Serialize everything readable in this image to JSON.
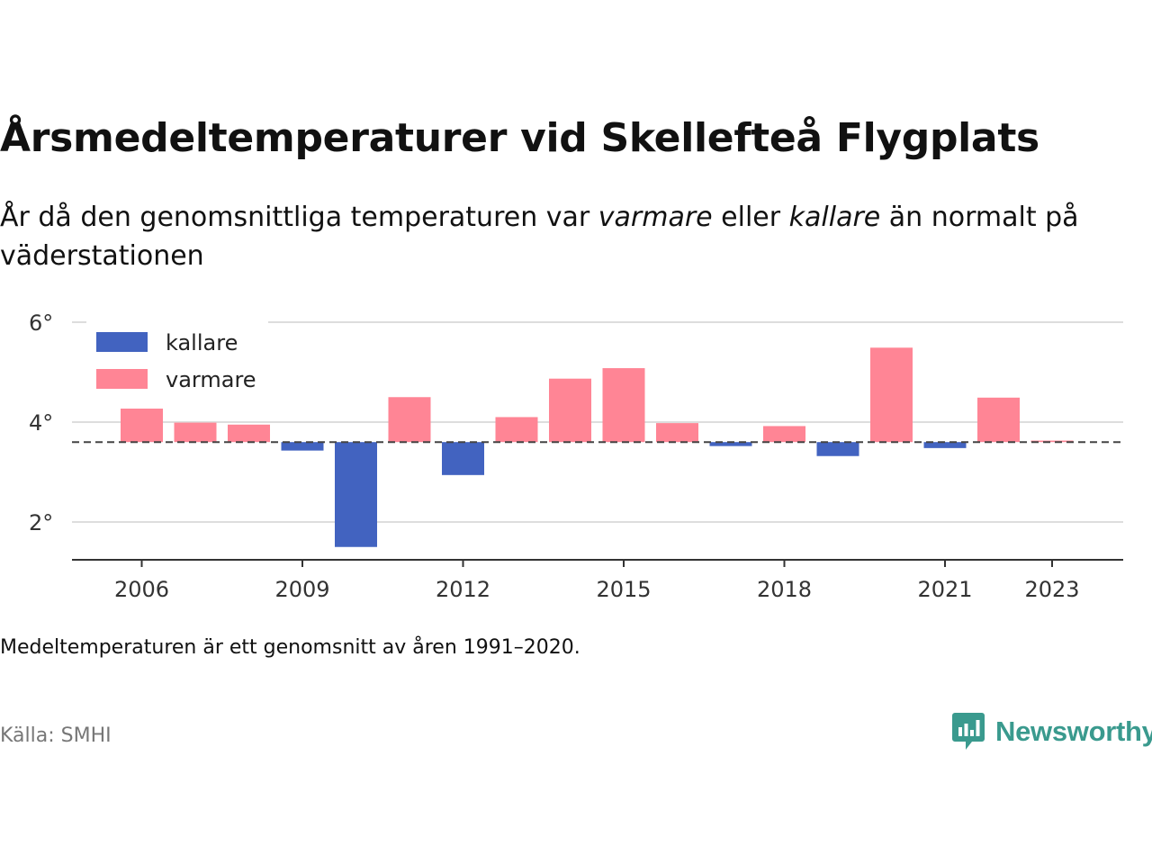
{
  "title": "Årsmedeltemperaturer vid Skellefteå Flygplats",
  "subtitle": {
    "part1": "År då den genomsnittliga temperaturen var ",
    "warm_word": "varmare",
    "part2": " eller ",
    "cold_word": "kallare",
    "part3": " än normalt på väderstationen"
  },
  "note": "Medeltemperaturen är ett genomsnitt av åren 1991–2020.",
  "source": "Källa: SMHI",
  "brand": {
    "name": "Newsworthy",
    "icon": "newsworthy-chat-bars-icon",
    "color": "#3a9a8e"
  },
  "chart_data": {
    "type": "bar",
    "baseline": 3.6,
    "ylim": [
      1.2,
      6.2
    ],
    "yticks": [
      2,
      4,
      6
    ],
    "ytick_labels": [
      "2°",
      "4°",
      "6°"
    ],
    "xticks": [
      2006,
      2009,
      2012,
      2015,
      2018,
      2021,
      2023
    ],
    "xtick_labels": [
      "2006",
      "2009",
      "2012",
      "2015",
      "2018",
      "2021",
      "2023"
    ],
    "grid": true,
    "legend_position": "top-left",
    "series": [
      {
        "name": "kallare",
        "color": "#4263c0"
      },
      {
        "name": "varmare",
        "color": "#ff8595"
      }
    ],
    "x": [
      2006,
      2007,
      2008,
      2009,
      2010,
      2011,
      2012,
      2013,
      2014,
      2015,
      2016,
      2017,
      2018,
      2019,
      2020,
      2021,
      2022,
      2023
    ],
    "values": [
      4.27,
      3.99,
      3.95,
      3.43,
      1.5,
      4.5,
      2.94,
      4.1,
      4.87,
      5.08,
      3.98,
      3.52,
      3.92,
      3.32,
      5.49,
      3.48,
      4.49,
      3.63
    ]
  }
}
